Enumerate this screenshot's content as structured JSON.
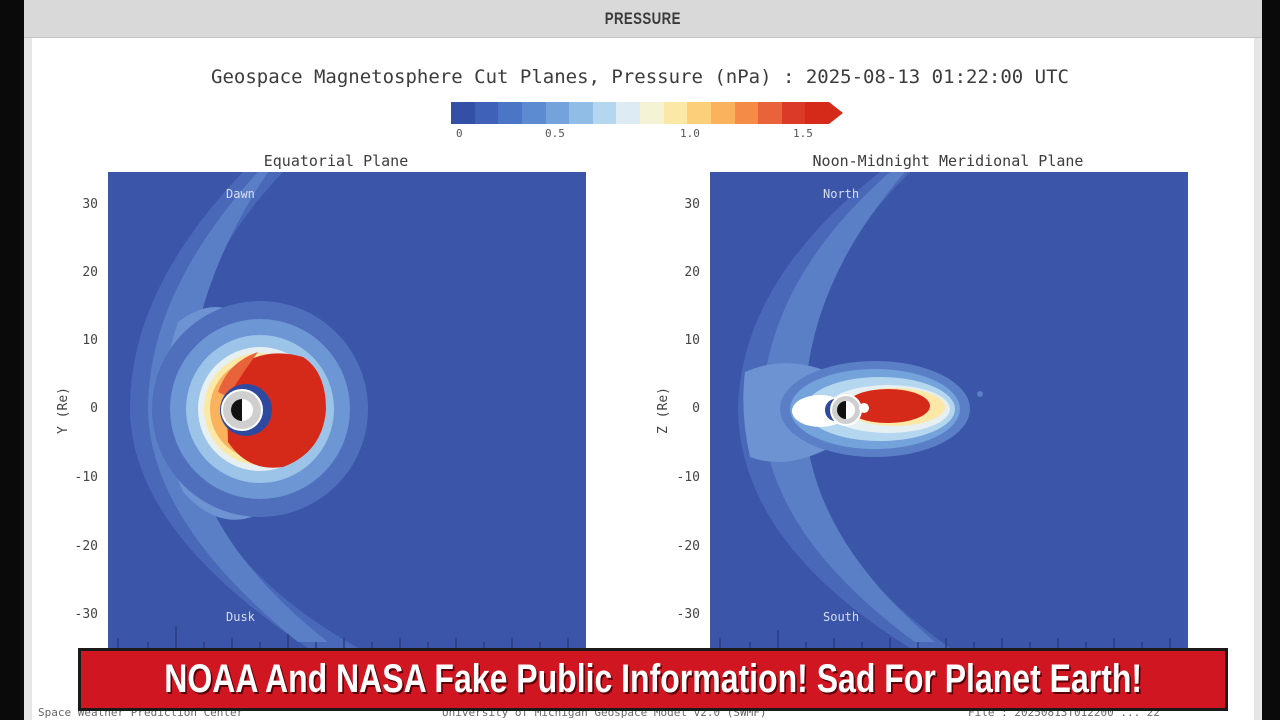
{
  "tab": {
    "title": "PRESSURE"
  },
  "figure": {
    "title": "Geospace Magnetosphere Cut Planes, Pressure (nPa) : 2025-08-13 01:22:00 UTC",
    "colorbar": {
      "ticks": [
        "0",
        "0.5",
        "1.0",
        "1.5"
      ],
      "colors": [
        "#3450a6",
        "#3f62b8",
        "#4b76c6",
        "#5c8bd1",
        "#74a3dc",
        "#90bde6",
        "#b4d6ef",
        "#dcebf4",
        "#f5f3d6",
        "#fbe7a6",
        "#fccf7b",
        "#fab25c",
        "#f48b46",
        "#e8623a",
        "#db3a29",
        "#d52a1a"
      ]
    },
    "left_plot": {
      "title": "Equatorial Plane",
      "ylabel": "Y (Re)",
      "top_label": "Dawn",
      "bottom_label": "Dusk"
    },
    "right_plot": {
      "title": "Noon-Midnight Meridional Plane",
      "ylabel": "Z (Re)",
      "top_label": "North",
      "bottom_label": "South"
    },
    "yticks": [
      "30",
      "20",
      "10",
      "0",
      "-10",
      "-20",
      "-30"
    ]
  },
  "footer": {
    "left": "Space Weather Prediction Center",
    "center": "University of Michigan Geospace Model v2.0 (SWMF)",
    "right": "File : 20250813T012200 ... 22"
  },
  "banner": {
    "text": "NOAA And NASA Fake Public Information! Sad For Planet Earth!"
  },
  "colors": {
    "banner_bg": "#d01621",
    "plot_bg": "#3b55a8",
    "accent_red": "#d52a1a"
  }
}
